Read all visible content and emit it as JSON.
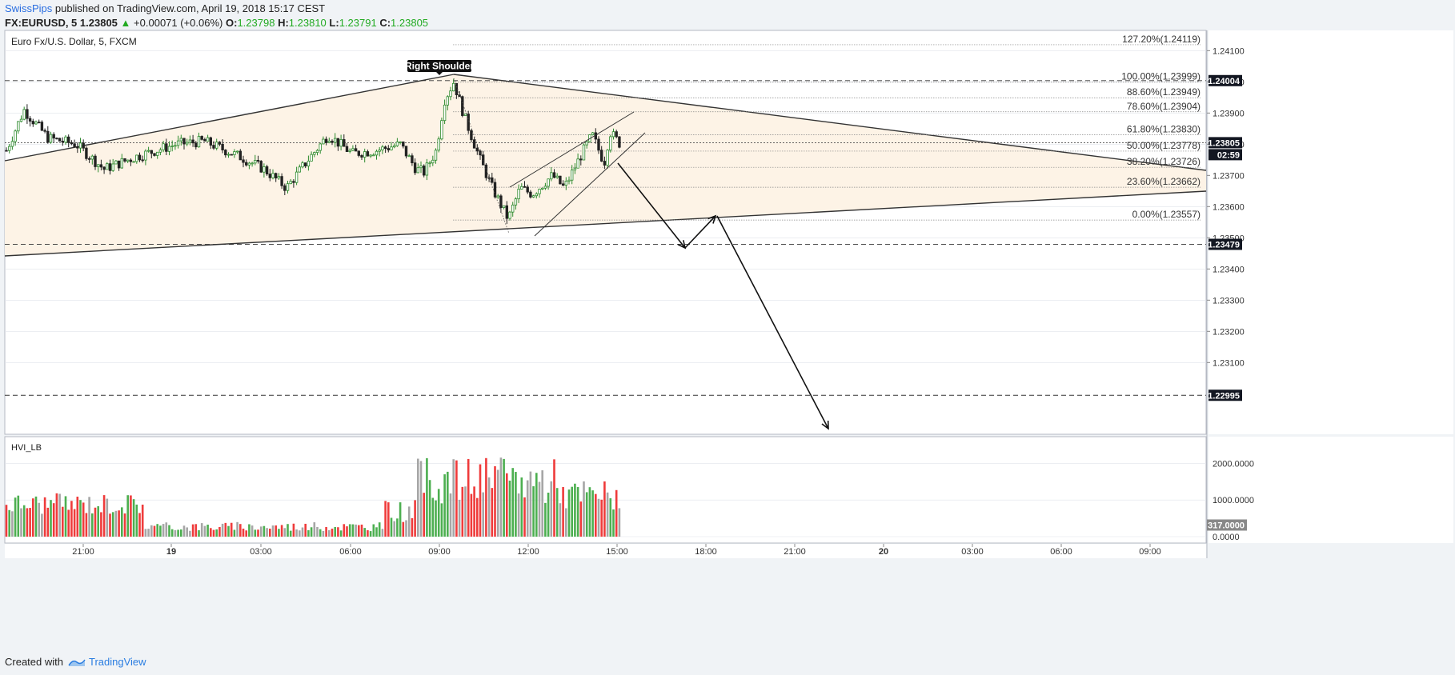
{
  "header": {
    "author": "SwissPips",
    "published_text": "published on TradingView.com, April 19, 2018 15:17 CEST",
    "symbol": "FX:EURUSD, 5",
    "change_arrow": "▲",
    "change_text": "+0.00071 (+0.06%)",
    "o_label": "O:",
    "o_value": "1.23798",
    "h_label": "H:",
    "h_value": "1.23810",
    "l_label": "L:",
    "l_value": "1.23791",
    "c_label": "C:",
    "c_value": "1.23805",
    "main_price": "1.23805",
    "up_color": "#22aa22"
  },
  "footer": {
    "created_with": "Created with",
    "brand": "TradingView"
  },
  "chart_data": {
    "type": "candlestick",
    "title": "Euro Fx/U.S. Dollar, 5, FXCM",
    "y_range": [
      1.2287,
      1.24165
    ],
    "y_ticks": [
      "1.24100",
      "1.24000",
      "1.23900",
      "1.23800",
      "1.23700",
      "1.23600",
      "1.23500",
      "1.23400",
      "1.23300",
      "1.23200",
      "1.23100"
    ],
    "y_tick_values": [
      1.241,
      1.24,
      1.239,
      1.238,
      1.237,
      1.236,
      1.235,
      1.234,
      1.233,
      1.232,
      1.231
    ],
    "x_ticks": [
      "21:00",
      "19",
      "03:00",
      "06:00",
      "09:00",
      "12:00",
      "15:00",
      "18:00",
      "21:00",
      "20",
      "03:00",
      "06:00",
      "09:00"
    ],
    "x_bold_ticks": [
      "19",
      "20"
    ],
    "price_labels": [
      {
        "text": "1.24004",
        "value": 1.24004,
        "style": "dark"
      },
      {
        "text": "1.23805",
        "value": 1.23805,
        "style": "dark"
      },
      {
        "text": "02:59",
        "value": 1.23762,
        "style": "dark"
      },
      {
        "text": "1.23479",
        "value": 1.23479,
        "style": "dark"
      },
      {
        "text": "1.22995",
        "value": 1.22995,
        "style": "dark"
      }
    ],
    "fib_levels": [
      {
        "label": "127.20%(1.24119)",
        "value": 1.24119
      },
      {
        "label": "100.00%(1.23999)",
        "value": 1.23999
      },
      {
        "label": "88.60%(1.23949)",
        "value": 1.23949
      },
      {
        "label": "78.60%(1.23904)",
        "value": 1.23904
      },
      {
        "label": "61.80%(1.23830)",
        "value": 1.2383
      },
      {
        "label": "50.00%(1.23778)",
        "value": 1.23778
      },
      {
        "label": "38.20%(1.23726)",
        "value": 1.23726
      },
      {
        "label": "23.60%(1.23662)",
        "value": 1.23662
      },
      {
        "label": "0.00%(1.23557)",
        "value": 1.23557
      }
    ],
    "annotation": "Right Shoulder",
    "colors": {
      "up": "#2e8b2e",
      "down": "#222222",
      "triangle_fill": "#fdf3e6",
      "grid": "#e0e3eb",
      "vol_up": "#4caf50",
      "vol_down": "#ef3b3b",
      "vol_gray": "#a6a6a6"
    },
    "volume": {
      "title": "HVI_LB",
      "y_ticks": [
        "2000.0000",
        "1000.0000",
        "0.0000"
      ],
      "y_tick_values": [
        2000,
        1000,
        0
      ],
      "y_range": [
        0,
        2620
      ],
      "last_value": "317.0000"
    }
  }
}
